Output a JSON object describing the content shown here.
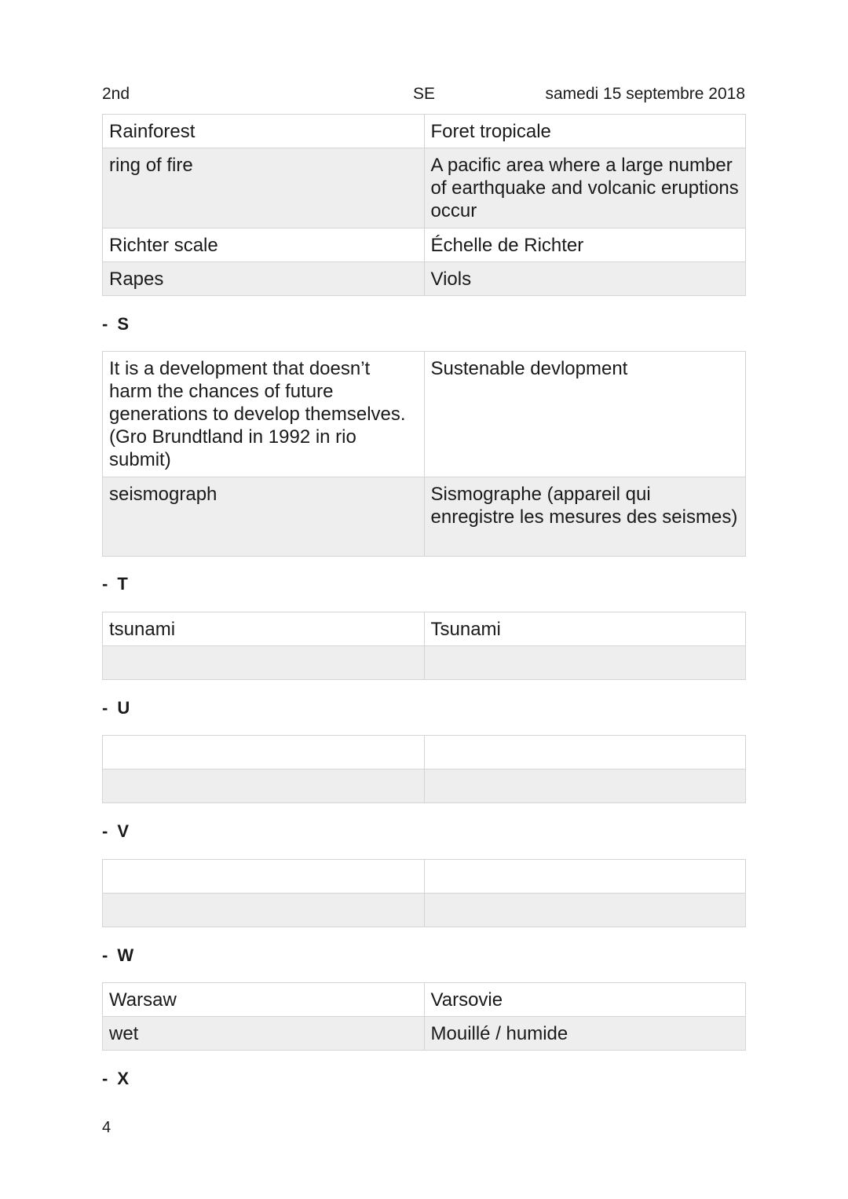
{
  "header": {
    "left": "2nd",
    "center": "SE",
    "right": "samedi 15 septembre 2018"
  },
  "sections": [
    {
      "letter": "",
      "rows": [
        [
          "Rainforest",
          "Foret tropicale"
        ],
        [
          "ring of fire",
          "A pacific area where a large number of earthquake and volcanic eruptions occur"
        ],
        [
          "Richter scale",
          "Échelle de Richter"
        ],
        [
          "Rapes",
          "Viols"
        ]
      ]
    },
    {
      "letter": "S",
      "rows": [
        [
          "It is a development that doesn’t harm the chances of future generations to develop themselves. (Gro Brundtland in 1992 in rio submit)",
          "Sustenable devlopment"
        ],
        [
          "seismograph",
          "Sismographe (appareil qui enregistre les mesures des seismes)"
        ]
      ]
    },
    {
      "letter": "T",
      "rows": [
        [
          "tsunami",
          "Tsunami"
        ],
        [
          "",
          ""
        ]
      ]
    },
    {
      "letter": "U",
      "rows": [
        [
          "",
          ""
        ],
        [
          "",
          ""
        ]
      ]
    },
    {
      "letter": "V",
      "rows": [
        [
          "",
          ""
        ],
        [
          "",
          ""
        ]
      ]
    },
    {
      "letter": "W",
      "rows": [
        [
          "Warsaw",
          "Varsovie"
        ],
        [
          "wet",
          "Mouillé / humide"
        ]
      ]
    },
    {
      "letter": "X",
      "rows": []
    }
  ],
  "dash": "-",
  "page_number": "4"
}
